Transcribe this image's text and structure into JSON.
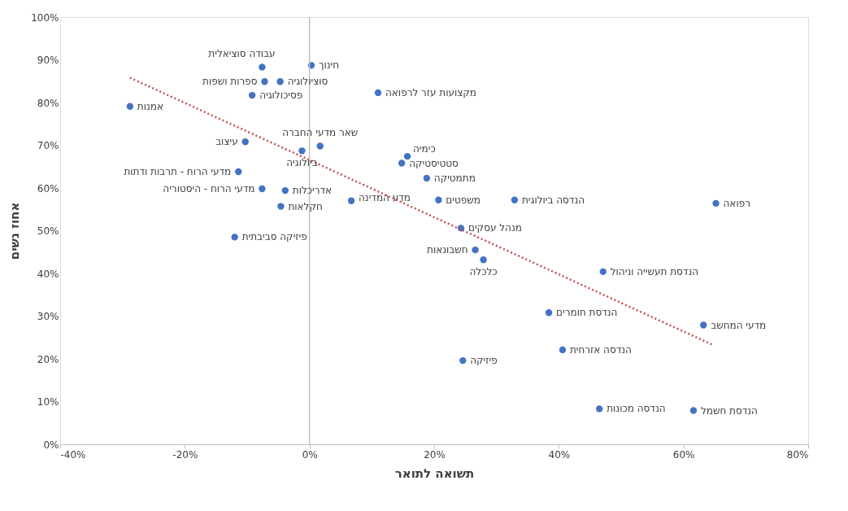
{
  "chart_data": {
    "type": "scatter",
    "xlabel": "תשואה לתואר",
    "ylabel": "אחוז נשים",
    "xlim": [
      -40,
      80
    ],
    "ylim": [
      0,
      100
    ],
    "xticks": [
      {
        "value": -40,
        "label": "-40%"
      },
      {
        "value": -20,
        "label": "-20%"
      },
      {
        "value": 0,
        "label": "0%"
      },
      {
        "value": 20,
        "label": "20%"
      },
      {
        "value": 40,
        "label": "40%"
      },
      {
        "value": 60,
        "label": "60%"
      },
      {
        "value": 80,
        "label": "80%"
      }
    ],
    "yticks": [
      {
        "value": 0,
        "label": "0%"
      },
      {
        "value": 10,
        "label": "10%"
      },
      {
        "value": 20,
        "label": "20%"
      },
      {
        "value": 30,
        "label": "30%"
      },
      {
        "value": 40,
        "label": "40%"
      },
      {
        "value": 50,
        "label": "50%"
      },
      {
        "value": 60,
        "label": "60%"
      },
      {
        "value": 70,
        "label": "70%"
      },
      {
        "value": 80,
        "label": "80%"
      },
      {
        "value": 90,
        "label": "90%"
      },
      {
        "value": 100,
        "label": "100%"
      }
    ],
    "grid": false,
    "legend": false,
    "marker": "circle",
    "ref_lines": [
      {
        "axis": "x",
        "value": 0,
        "color": "#bfbfbf"
      }
    ],
    "series": [
      {
        "type": "scatter",
        "color": "#4472c4",
        "x": [
          -28.8,
          -7.6,
          0.3,
          -7.2,
          -4.7,
          -9.2,
          11.0,
          -10.3,
          -1.2,
          1.7,
          15.7,
          14.8,
          18.8,
          -11.4,
          -7.6,
          -3.9,
          -4.6,
          6.7,
          20.7,
          32.9,
          65.2,
          24.3,
          -12.0,
          26.6,
          27.9,
          47.1,
          38.4,
          63.2,
          40.6,
          24.6,
          46.5,
          61.6
        ],
        "values": [
          79.1,
          88.3,
          88.7,
          84.9,
          84.9,
          81.7,
          82.3,
          70.8,
          68.7,
          69.8,
          67.4,
          65.8,
          62.3,
          63.8,
          59.8,
          59.4,
          55.7,
          57.0,
          57.2,
          57.2,
          56.4,
          50.6,
          48.5,
          45.5,
          43.2,
          40.4,
          30.8,
          27.9,
          22.1,
          19.6,
          8.3,
          7.9
        ]
      },
      {
        "type": "line",
        "color": "#c0504d",
        "line_style": "dotted",
        "marker": "none",
        "x": [
          -28.8,
          64.8
        ],
        "values": [
          85.8,
          23.2
        ]
      }
    ],
    "annotations": [
      {
        "text": "אמנות",
        "x": -28.8,
        "y": 79.1
      },
      {
        "text": "עבודה סוציאלית",
        "x": -7.6,
        "y": 88.3
      },
      {
        "text": "חינוך",
        "x": 0.3,
        "y": 88.7
      },
      {
        "text": "ספרות ושפות",
        "x": -7.2,
        "y": 84.9
      },
      {
        "text": "סוציולוגיה",
        "x": -4.7,
        "y": 84.9
      },
      {
        "text": "פסיכולוגיה",
        "x": -9.2,
        "y": 81.7
      },
      {
        "text": "מקצועות עזר לרפואה",
        "x": 11.0,
        "y": 82.3
      },
      {
        "text": "עיצוב",
        "x": -10.3,
        "y": 70.8
      },
      {
        "text": "ביולוגיה",
        "x": -1.2,
        "y": 68.7
      },
      {
        "text": "שאר מדעי החברה",
        "x": 1.7,
        "y": 69.8
      },
      {
        "text": "כימיה",
        "x": 15.7,
        "y": 67.4
      },
      {
        "text": "סטטיסטיקה",
        "x": 14.8,
        "y": 65.8
      },
      {
        "text": "מתמטיקה",
        "x": 18.8,
        "y": 62.3
      },
      {
        "text": "מדעי הרוח - תרבות ודתות",
        "x": -11.4,
        "y": 63.8
      },
      {
        "text": "מדעי הרוח - היסטוריה",
        "x": -7.6,
        "y": 59.8
      },
      {
        "text": "אדריכלות",
        "x": -3.9,
        "y": 59.4
      },
      {
        "text": "חקלאות",
        "x": -4.6,
        "y": 55.7
      },
      {
        "text": "מדע המדינה",
        "x": 6.7,
        "y": 57.0
      },
      {
        "text": "משפטים",
        "x": 20.7,
        "y": 57.2
      },
      {
        "text": "הנדסה ביולוגית",
        "x": 32.9,
        "y": 57.2
      },
      {
        "text": "רפואה",
        "x": 65.2,
        "y": 56.4
      },
      {
        "text": "מנהל עסקים",
        "x": 24.3,
        "y": 50.6
      },
      {
        "text": "פיזיקה סביבתית",
        "x": -12.0,
        "y": 48.5
      },
      {
        "text": "חשבונאות",
        "x": 26.6,
        "y": 45.5
      },
      {
        "text": "כלכלה",
        "x": 27.9,
        "y": 43.2
      },
      {
        "text": "הנדסת תעשייה וניהול",
        "x": 47.1,
        "y": 40.4
      },
      {
        "text": "הנדסת חומרים",
        "x": 38.4,
        "y": 30.8
      },
      {
        "text": "מדעי המחשב",
        "x": 63.2,
        "y": 27.9
      },
      {
        "text": "הנדסה אזרחית",
        "x": 40.6,
        "y": 22.1
      },
      {
        "text": "פיזיקה",
        "x": 24.6,
        "y": 19.6
      },
      {
        "text": "הנדסה מכונות",
        "x": 46.5,
        "y": 8.3
      },
      {
        "text": "הנדסת חשמל",
        "x": 61.6,
        "y": 7.9
      }
    ]
  }
}
